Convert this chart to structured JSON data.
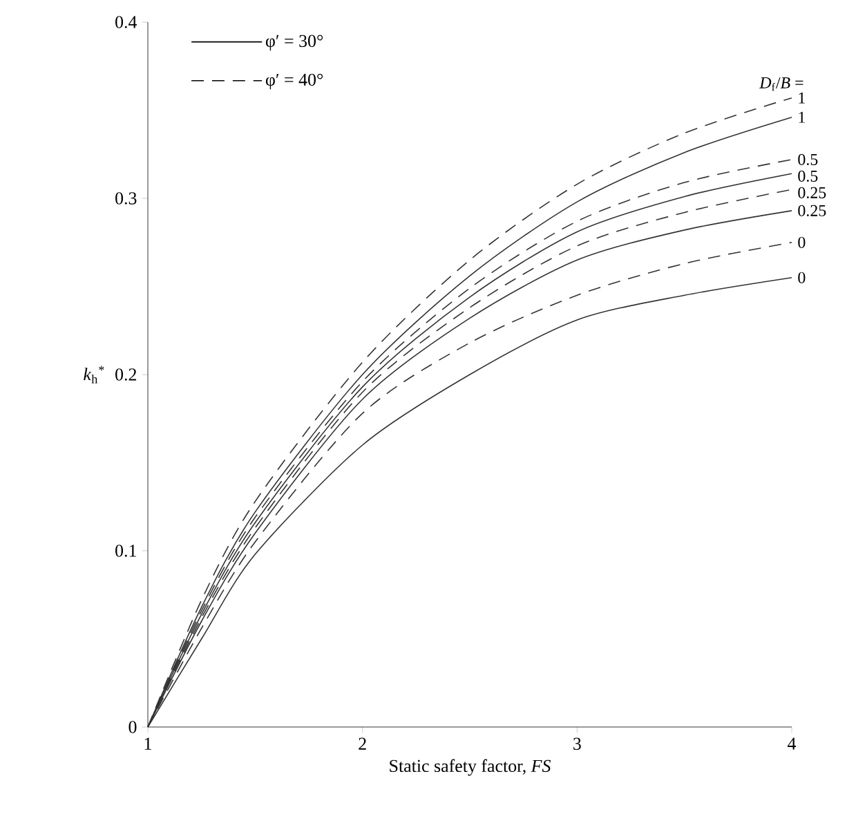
{
  "chart_data": {
    "type": "line",
    "xlabel": "Static safety factor, *FS*",
    "ylabel": "*k*$_{h}$$^{*}$",
    "xlim": [
      1,
      4
    ],
    "ylim": [
      0,
      0.4
    ],
    "xticks": [
      1,
      2,
      3,
      4
    ],
    "yticks": [
      0,
      0.1,
      0.2,
      0.3,
      0.4
    ],
    "grid": false,
    "legend": "right",
    "marker": "none",
    "annotations": [
      "φ′ = 30°",
      "φ′ = 40°",
      {
        "text": "*D*$_{f}$/*B* =",
        "x": 4,
        "y": 0.357
      }
    ],
    "x": [
      1,
      1.25,
      1.5,
      2,
      2.5,
      3,
      3.5,
      4
    ],
    "series": [
      {
        "name": "1",
        "color": "#333333",
        "line_style": "solid",
        "values": [
          0,
          0.068,
          0.122,
          0.2,
          0.256,
          0.298,
          0.326,
          0.346
        ]
      },
      {
        "name": "1",
        "color": "#333333",
        "line_style": "dashed",
        "values": [
          0,
          0.072,
          0.128,
          0.207,
          0.265,
          0.308,
          0.337,
          0.357
        ]
      },
      {
        "name": "0.5",
        "color": "#333333",
        "line_style": "dashed",
        "values": [
          0,
          0.066,
          0.119,
          0.196,
          0.249,
          0.287,
          0.309,
          0.322
        ]
      },
      {
        "name": "0.5",
        "color": "#333333",
        "line_style": "solid",
        "values": [
          0,
          0.064,
          0.116,
          0.193,
          0.244,
          0.281,
          0.301,
          0.314
        ]
      },
      {
        "name": "0.25",
        "color": "#333333",
        "line_style": "dashed",
        "values": [
          0,
          0.062,
          0.113,
          0.19,
          0.238,
          0.273,
          0.292,
          0.305
        ]
      },
      {
        "name": "0.25",
        "color": "#333333",
        "line_style": "solid",
        "values": [
          0,
          0.06,
          0.11,
          0.186,
          0.232,
          0.265,
          0.282,
          0.293
        ]
      },
      {
        "name": "0",
        "color": "#333333",
        "line_style": "dashed",
        "values": [
          0,
          0.056,
          0.105,
          0.178,
          0.218,
          0.245,
          0.263,
          0.275
        ]
      },
      {
        "name": "0",
        "color": "#333333",
        "line_style": "solid",
        "values": [
          0,
          0.05,
          0.098,
          0.16,
          0.2,
          0.231,
          0.245,
          0.255
        ]
      }
    ]
  }
}
